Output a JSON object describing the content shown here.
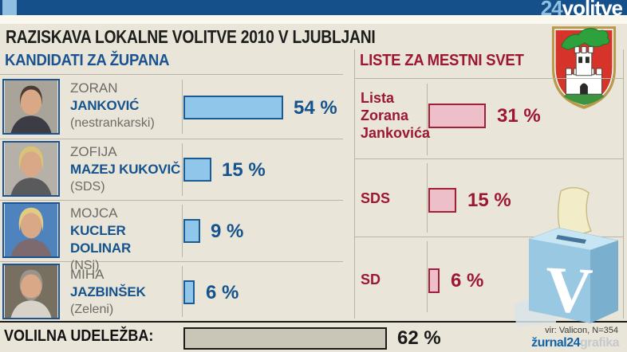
{
  "banner": {
    "logo_num": "24",
    "logo_word": "volitve"
  },
  "title": "RAZISKAVA LOKALNE VOLITVE 2010 V LJUBLJANI",
  "left_panel": {
    "header": "KANDIDATI ZA ŽUPANA",
    "candidates": [
      {
        "first": "ZORAN",
        "last": "JANKOVIĆ",
        "party": "(nestrankarski)",
        "value": 54,
        "label": "54 %"
      },
      {
        "first": "ZOFIJA",
        "last": "MAZEJ KUKOVIČ",
        "party": "(SDS)",
        "value": 15,
        "label": "15 %"
      },
      {
        "first": "MOJCA",
        "last": "KUCLER DOLINAR",
        "party": "(NSi)",
        "value": 9,
        "label": "9 %"
      },
      {
        "first": "MIHA",
        "last": "JAZBINŠEK",
        "party": "(Zeleni)",
        "value": 6,
        "label": "6 %"
      }
    ]
  },
  "right_panel": {
    "header": "LISTE ZA MESTNI SVET",
    "lists": [
      {
        "name": "Lista Zorana Jankovića",
        "value": 31,
        "label": "31 %"
      },
      {
        "name": "SDS",
        "value": 15,
        "label": "15 %"
      },
      {
        "name": "SD",
        "value": 6,
        "label": "6 %"
      }
    ]
  },
  "turnout": {
    "label": "VOLILNA UDELEŽBA:",
    "value": 62,
    "display": "62 %"
  },
  "footer": {
    "source": "vir: Valicon, N=354",
    "brand": "žurnal24",
    "brand_suffix": "grafika"
  },
  "icons": {
    "coat_of_arms": "ljubljana-coat-of-arms",
    "ballot_box": "ballot-box-with-v",
    "logo_square": "24-logo-square"
  },
  "colors": {
    "banner_blue": "#15508B",
    "accent_blue": "#15538E",
    "bar_blue": "#8FC6EA",
    "accent_red": "#9C1832",
    "bar_pink": "#EDC0C9",
    "background_beige": "#E9E5D9",
    "turnout_gray": "#C9C6B7"
  },
  "chart_data": [
    {
      "type": "bar",
      "title": "KANDIDATI ZA ŽUPANA",
      "orientation": "horizontal",
      "unit": "%",
      "categories": [
        "ZORAN JANKOVIĆ (nestrankarski)",
        "ZOFIJA MAZEJ KUKOVIČ (SDS)",
        "MOJCA KUCLER DOLINAR (NSi)",
        "MIHA JAZBINŠEK (Zeleni)"
      ],
      "values": [
        54,
        15,
        9,
        6
      ],
      "bar_color": "#8FC6EA",
      "xlim": [
        0,
        100
      ]
    },
    {
      "type": "bar",
      "title": "LISTE ZA MESTNI SVET",
      "orientation": "horizontal",
      "unit": "%",
      "categories": [
        "Lista Zorana Jankovića",
        "SDS",
        "SD"
      ],
      "values": [
        31,
        15,
        6
      ],
      "bar_color": "#EDC0C9",
      "xlim": [
        0,
        100
      ]
    },
    {
      "type": "bar",
      "title": "VOLILNA UDELEŽBA",
      "orientation": "horizontal",
      "unit": "%",
      "categories": [
        "VOLILNA UDELEŽBA"
      ],
      "values": [
        62
      ],
      "bar_color": "#C9C6B7",
      "xlim": [
        0,
        100
      ]
    }
  ]
}
